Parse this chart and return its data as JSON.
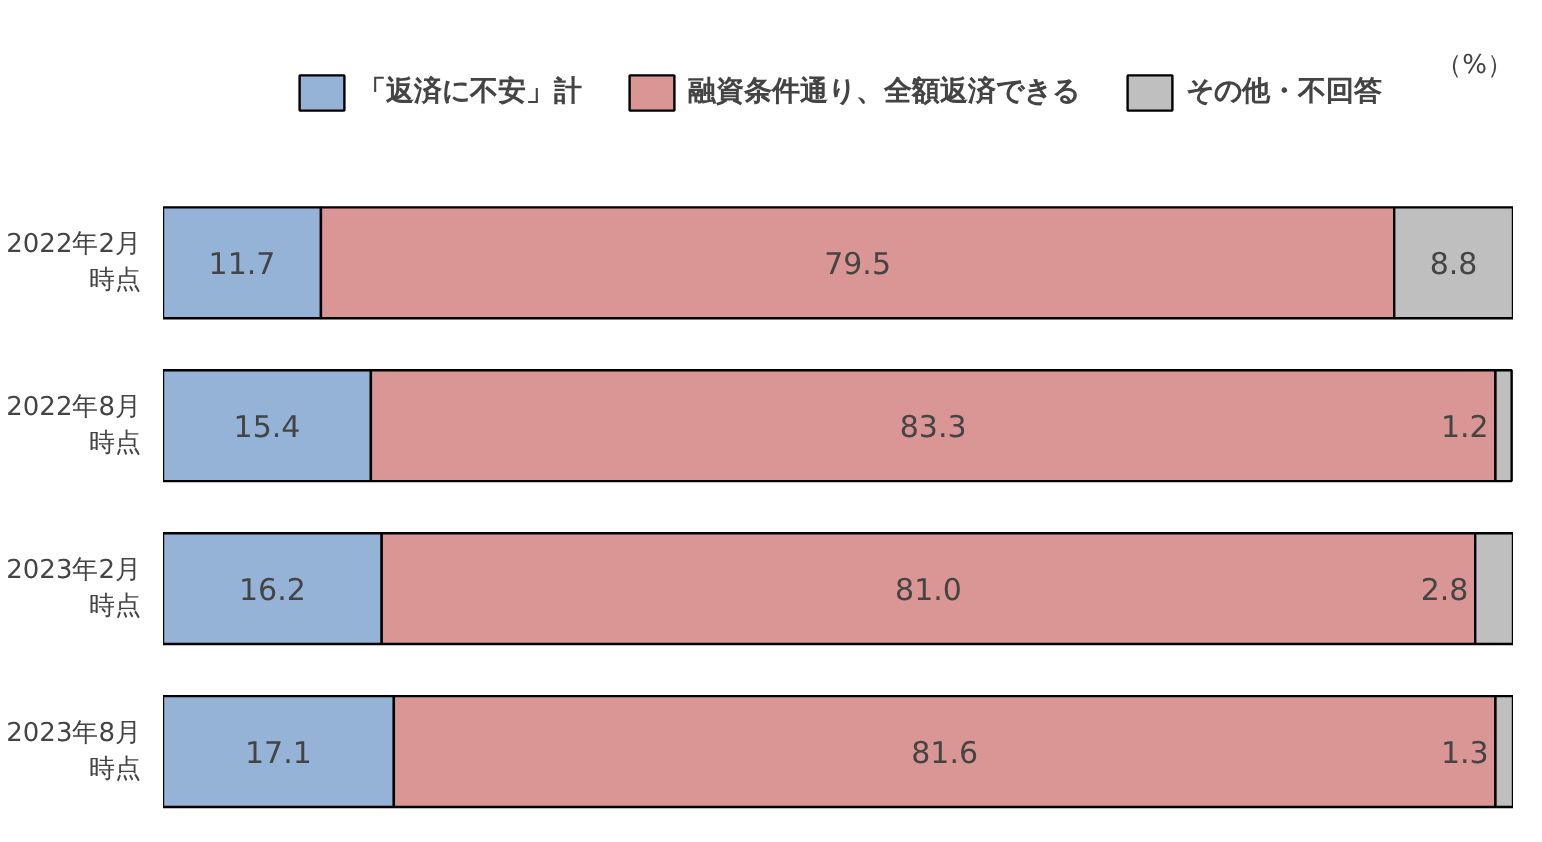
{
  "chart_data": {
    "type": "bar",
    "orientation": "horizontal",
    "stacked": true,
    "legend": "top",
    "tick_labels": "y",
    "grid": false,
    "categories": [
      "2022年2月時点",
      "2022年8月時点",
      "2023年2月時点",
      "2023年8月時点"
    ],
    "series": [
      {
        "name": "「返済に不安」計",
        "color": "#95b3d7",
        "values": [
          11.7,
          15.4,
          16.2,
          17.1
        ],
        "value_labels": [
          "11.7",
          "15.4",
          "16.2",
          "17.1"
        ]
      },
      {
        "name": "融資条件通り、全額返済できる",
        "color": "#d99694",
        "values": [
          79.5,
          83.3,
          81.0,
          81.6
        ],
        "value_labels": [
          "79.5",
          "83.3",
          "81.0",
          "81.6"
        ]
      },
      {
        "name": "その他・不回答",
        "color": "#bfbfbf",
        "values": [
          8.8,
          1.2,
          2.8,
          1.3
        ],
        "value_labels": [
          "8.8",
          "1.2",
          "2.8",
          "1.3"
        ]
      }
    ],
    "annotations": [
      "（%）"
    ]
  }
}
